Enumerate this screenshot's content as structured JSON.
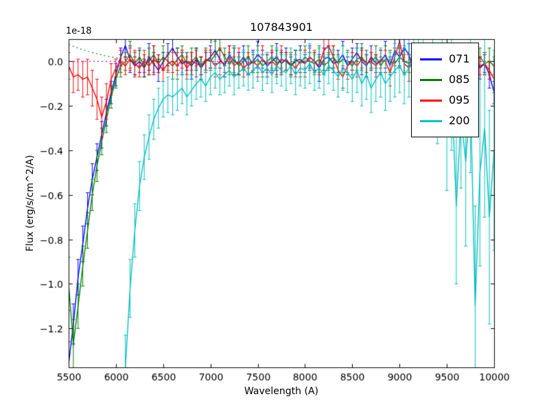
{
  "chart_data": {
    "type": "line",
    "title": "107843901",
    "xlabel": "Wavelength (A)",
    "ylabel": "Flux (erg/s/cm^2/A)",
    "offset_text": "1e-18",
    "xlim": [
      5500,
      10000
    ],
    "ylim": [
      -1.375,
      0.1
    ],
    "grid": false,
    "legend_position": "upper right",
    "xticks": [
      5500,
      6000,
      6500,
      7000,
      7500,
      8000,
      8500,
      9000,
      9500,
      10000
    ],
    "xtick_labels": [
      "5500",
      "6000",
      "6500",
      "7000",
      "7500",
      "8000",
      "8500",
      "9000",
      "9500",
      "10000"
    ],
    "yticks": [
      0,
      -0.2,
      -0.4,
      -0.6,
      -0.8,
      -1.0,
      -1.2
    ],
    "ytick_labels": [
      "0.0",
      "−0.2",
      "−0.4",
      "−0.6",
      "−0.8",
      "−1.0",
      "−1.2"
    ],
    "series": [
      {
        "name": "model-zero-line",
        "color": "#bf00bf",
        "style": "dotted",
        "in_legend": false,
        "x_start": 5500,
        "x_step": 4500,
        "y": [
          0,
          0
        ]
      },
      {
        "name": "model-continuum",
        "color": "#007f00",
        "style": "dotted",
        "in_legend": false,
        "x_start": 5500,
        "x_step": 50,
        "y": [
          0.075,
          0.068,
          0.06,
          0.053,
          0.046,
          0.04,
          0.034,
          0.029,
          0.024,
          0.02,
          0.016,
          0.013,
          0.01,
          0.008,
          0.006,
          0.004,
          0.003,
          0.002,
          0.001,
          0.0
        ]
      },
      {
        "name": "071",
        "color": "#0000ff",
        "style": "solid",
        "in_legend": true,
        "x_start": 5500,
        "x_step": 50,
        "y": [
          -1.36,
          -1.18,
          -0.97,
          -0.82,
          -0.66,
          -0.53,
          -0.43,
          -0.33,
          -0.23,
          -0.14,
          -0.06,
          0.02,
          0.07,
          0.01,
          -0.02,
          0.0,
          -0.03,
          0.02,
          -0.01,
          -0.04,
          0.0,
          0.03,
          0.06,
          0.02,
          -0.01,
          0.0,
          -0.02,
          0.01,
          -0.03,
          0.0,
          0.02,
          0.05,
          0.01,
          -0.02,
          0.03,
          0.0,
          -0.01,
          0.02,
          -0.02,
          0.0,
          0.03,
          0.01,
          -0.02,
          0.0,
          0.02,
          -0.01,
          0.01,
          -0.02,
          0.0,
          0.01,
          -0.01,
          0.02,
          0.0,
          -0.03,
          0.01,
          0.02,
          -0.01,
          0.0,
          0.03,
          -0.02,
          0.01,
          0.04,
          0.0,
          -0.02,
          0.02,
          -0.01,
          0.0,
          0.03,
          -0.02,
          0.05,
          0.02,
          0.06,
          0.03,
          -0.04,
          -0.01,
          0.01,
          -0.02,
          0.0,
          0.02,
          -0.01,
          0.01,
          0.0,
          -0.02,
          0.01,
          -0.01,
          0.02,
          0.0,
          -0.03,
          -0.01,
          -0.06,
          -0.14
        ],
        "yerr": [
          0.1,
          0.09,
          0.08,
          0.08,
          0.07,
          0.07,
          0.06,
          0.06,
          0.06,
          0.05,
          0.05,
          0.04,
          0.05,
          0.06,
          0.04,
          0.05,
          0.04,
          0.06,
          0.05,
          0.05,
          0.04,
          0.05,
          0.06,
          0.04,
          0.05,
          0.04,
          0.06,
          0.05,
          0.05,
          0.04,
          0.05,
          0.06,
          0.04,
          0.05,
          0.04,
          0.06,
          0.05,
          0.05,
          0.04,
          0.05,
          0.06,
          0.04,
          0.05,
          0.04,
          0.06,
          0.05,
          0.05,
          0.04,
          0.05,
          0.06,
          0.04,
          0.05,
          0.04,
          0.06,
          0.05,
          0.05,
          0.04,
          0.05,
          0.06,
          0.04,
          0.05,
          0.04,
          0.06,
          0.05,
          0.05,
          0.04,
          0.05,
          0.06,
          0.04,
          0.05,
          0.04,
          0.06,
          0.05,
          0.05,
          0.04,
          0.05,
          0.06,
          0.04,
          0.05,
          0.04,
          0.06,
          0.05,
          0.05,
          0.04,
          0.05,
          0.06,
          0.04,
          0.05,
          0.04,
          0.06,
          0.05
        ]
      },
      {
        "name": "085",
        "color": "#008000",
        "style": "solid",
        "in_legend": true,
        "x_start": 5500,
        "x_step": 50,
        "y": [
          -1.0,
          -1.27,
          -1.1,
          -0.92,
          -0.76,
          -0.6,
          -0.47,
          -0.36,
          -0.26,
          -0.16,
          -0.08,
          -0.02,
          0.0,
          0.03,
          -0.01,
          0.02,
          -0.02,
          0.0,
          0.03,
          -0.01,
          0.02,
          0.0,
          -0.02,
          0.01,
          0.03,
          -0.01,
          0.0,
          0.02,
          -0.02,
          0.01,
          0.0,
          0.03,
          0.06,
          0.02,
          -0.01,
          0.01,
          -0.02,
          0.0,
          0.02,
          -0.01,
          0.01,
          -0.02,
          0.0,
          0.02,
          -0.01,
          0.01,
          0.0,
          -0.02,
          0.01,
          -0.01,
          0.02,
          0.0,
          -0.01,
          0.01,
          -0.02,
          0.0,
          0.02,
          -0.01,
          0.01,
          0.0,
          -0.02,
          0.01,
          0.02,
          -0.01,
          0.0,
          0.02,
          -0.02,
          0.01,
          0.0,
          -0.01,
          0.02,
          0.0,
          -0.01,
          0.01,
          -0.02,
          0.0,
          0.01,
          -0.01,
          0.02,
          0.0,
          -0.01,
          0.01,
          0.0,
          -0.02,
          0.01,
          -0.01,
          0.0,
          0.02,
          -0.01,
          0.0,
          -0.02
        ],
        "yerr": [
          0.12,
          0.11,
          0.1,
          0.09,
          0.08,
          0.07,
          0.07,
          0.06,
          0.06,
          0.05,
          0.04,
          0.05,
          0.04,
          0.06,
          0.05,
          0.04,
          0.05,
          0.06,
          0.04,
          0.04,
          0.05,
          0.04,
          0.06,
          0.05,
          0.04,
          0.05,
          0.06,
          0.04,
          0.04,
          0.05,
          0.04,
          0.06,
          0.05,
          0.04,
          0.05,
          0.06,
          0.04,
          0.04,
          0.05,
          0.04,
          0.06,
          0.05,
          0.04,
          0.05,
          0.06,
          0.04,
          0.04,
          0.05,
          0.04,
          0.06,
          0.05,
          0.04,
          0.05,
          0.06,
          0.04,
          0.04,
          0.05,
          0.04,
          0.06,
          0.05,
          0.04,
          0.05,
          0.06,
          0.04,
          0.04,
          0.05,
          0.04,
          0.06,
          0.05,
          0.04,
          0.05,
          0.06,
          0.04,
          0.04,
          0.05,
          0.04,
          0.06,
          0.05,
          0.04,
          0.05,
          0.06,
          0.04,
          0.04,
          0.05,
          0.04,
          0.06,
          0.05,
          0.04,
          0.05,
          0.06,
          0.04
        ]
      },
      {
        "name": "095",
        "color": "#ff0000",
        "style": "solid",
        "in_legend": true,
        "x_start": 5500,
        "x_step": 50,
        "y": [
          -0.02,
          -0.07,
          -0.06,
          -0.08,
          -0.07,
          -0.12,
          -0.17,
          -0.25,
          -0.18,
          -0.08,
          -0.03,
          0.0,
          -0.02,
          0.01,
          -0.01,
          -0.03,
          0.0,
          -0.02,
          0.01,
          -0.01,
          -0.04,
          -0.01,
          0.0,
          -0.02,
          0.01,
          -0.03,
          0.0,
          -0.01,
          -0.02,
          0.0,
          0.01,
          -0.02,
          0.0,
          -0.01,
          0.02,
          -0.02,
          0.0,
          -0.03,
          -0.01,
          0.0,
          -0.02,
          0.01,
          -0.01,
          0.0,
          -0.02,
          0.01,
          0.0,
          -0.01,
          -0.03,
          0.0,
          -0.01,
          0.02,
          0.0,
          -0.02,
          0.05,
          0.07,
          0.02,
          -0.04,
          -0.07,
          -0.02,
          0.0,
          -0.02,
          0.01,
          -0.01,
          0.0,
          -0.02,
          0.01,
          0.0,
          -0.05,
          0.02,
          0.09,
          -0.01,
          -0.03,
          0.0,
          -0.02,
          0.01,
          -0.01,
          0.0,
          -0.02,
          0.01,
          0.0,
          -0.01,
          -0.02,
          0.0,
          0.01,
          -0.01,
          0.0,
          -0.02,
          -0.01,
          -0.04,
          -0.08
        ],
        "yerr": [
          0.06,
          0.07,
          0.07,
          0.08,
          0.08,
          0.08,
          0.09,
          0.09,
          0.08,
          0.07,
          0.04,
          0.05,
          0.04,
          0.05,
          0.06,
          0.04,
          0.05,
          0.04,
          0.06,
          0.04,
          0.05,
          0.04,
          0.05,
          0.06,
          0.04,
          0.05,
          0.04,
          0.06,
          0.04,
          0.05,
          0.04,
          0.05,
          0.06,
          0.04,
          0.05,
          0.04,
          0.06,
          0.04,
          0.05,
          0.04,
          0.05,
          0.06,
          0.04,
          0.05,
          0.04,
          0.06,
          0.04,
          0.05,
          0.04,
          0.05,
          0.06,
          0.04,
          0.05,
          0.04,
          0.06,
          0.04,
          0.05,
          0.04,
          0.05,
          0.06,
          0.04,
          0.05,
          0.04,
          0.06,
          0.04,
          0.05,
          0.04,
          0.05,
          0.06,
          0.04,
          0.05,
          0.04,
          0.06,
          0.04,
          0.05,
          0.04,
          0.05,
          0.06,
          0.04,
          0.05,
          0.04,
          0.06,
          0.04,
          0.05,
          0.04,
          0.05,
          0.06,
          0.04,
          0.05,
          0.04,
          0.06
        ]
      },
      {
        "name": "200",
        "color": "#00bfbf",
        "style": "solid",
        "in_legend": true,
        "x_start": 6100,
        "x_step": 50,
        "y": [
          -1.38,
          -1.02,
          -0.76,
          -0.56,
          -0.43,
          -0.34,
          -0.26,
          -0.21,
          -0.17,
          -0.15,
          -0.16,
          -0.14,
          -0.12,
          -0.16,
          -0.13,
          -0.1,
          -0.08,
          -0.11,
          -0.07,
          -0.05,
          -0.08,
          -0.06,
          -0.04,
          -0.07,
          -0.05,
          -0.03,
          -0.06,
          -0.04,
          -0.02,
          -0.05,
          -0.03,
          -0.06,
          -0.02,
          -0.04,
          -0.05,
          -0.02,
          -0.06,
          -0.03,
          -0.04,
          -0.01,
          -0.05,
          -0.03,
          -0.06,
          -0.02,
          -0.04,
          -0.07,
          -0.03,
          -0.05,
          -0.08,
          -0.04,
          -0.1,
          -0.06,
          -0.12,
          -0.08,
          -0.05,
          -0.1,
          -0.07,
          -0.04,
          -0.02,
          -0.06,
          -0.03,
          0.02,
          -0.05,
          0.0,
          -0.1,
          0.05,
          -0.15,
          0.0,
          -0.3,
          -0.1,
          -0.65,
          -0.25,
          -0.45,
          -0.15,
          -1.1,
          -0.5,
          -0.3,
          -0.7,
          -0.4
        ],
        "yerr": [
          0.15,
          0.13,
          0.12,
          0.11,
          0.1,
          0.1,
          0.09,
          0.09,
          0.08,
          0.08,
          0.08,
          0.08,
          0.07,
          0.08,
          0.07,
          0.07,
          0.08,
          0.07,
          0.08,
          0.07,
          0.07,
          0.08,
          0.07,
          0.08,
          0.07,
          0.08,
          0.07,
          0.08,
          0.07,
          0.08,
          0.07,
          0.08,
          0.08,
          0.07,
          0.08,
          0.08,
          0.09,
          0.08,
          0.08,
          0.09,
          0.08,
          0.09,
          0.09,
          0.08,
          0.09,
          0.09,
          0.1,
          0.09,
          0.1,
          0.1,
          0.1,
          0.11,
          0.11,
          0.1,
          0.11,
          0.12,
          0.11,
          0.12,
          0.12,
          0.13,
          0.13,
          0.14,
          0.15,
          0.16,
          0.18,
          0.2,
          0.22,
          0.25,
          0.28,
          0.3,
          0.35,
          0.32,
          0.38,
          0.35,
          0.45,
          0.42,
          0.4,
          0.48,
          0.45
        ]
      }
    ],
    "legend": {
      "entries": [
        "071",
        "085",
        "095",
        "200"
      ]
    }
  }
}
